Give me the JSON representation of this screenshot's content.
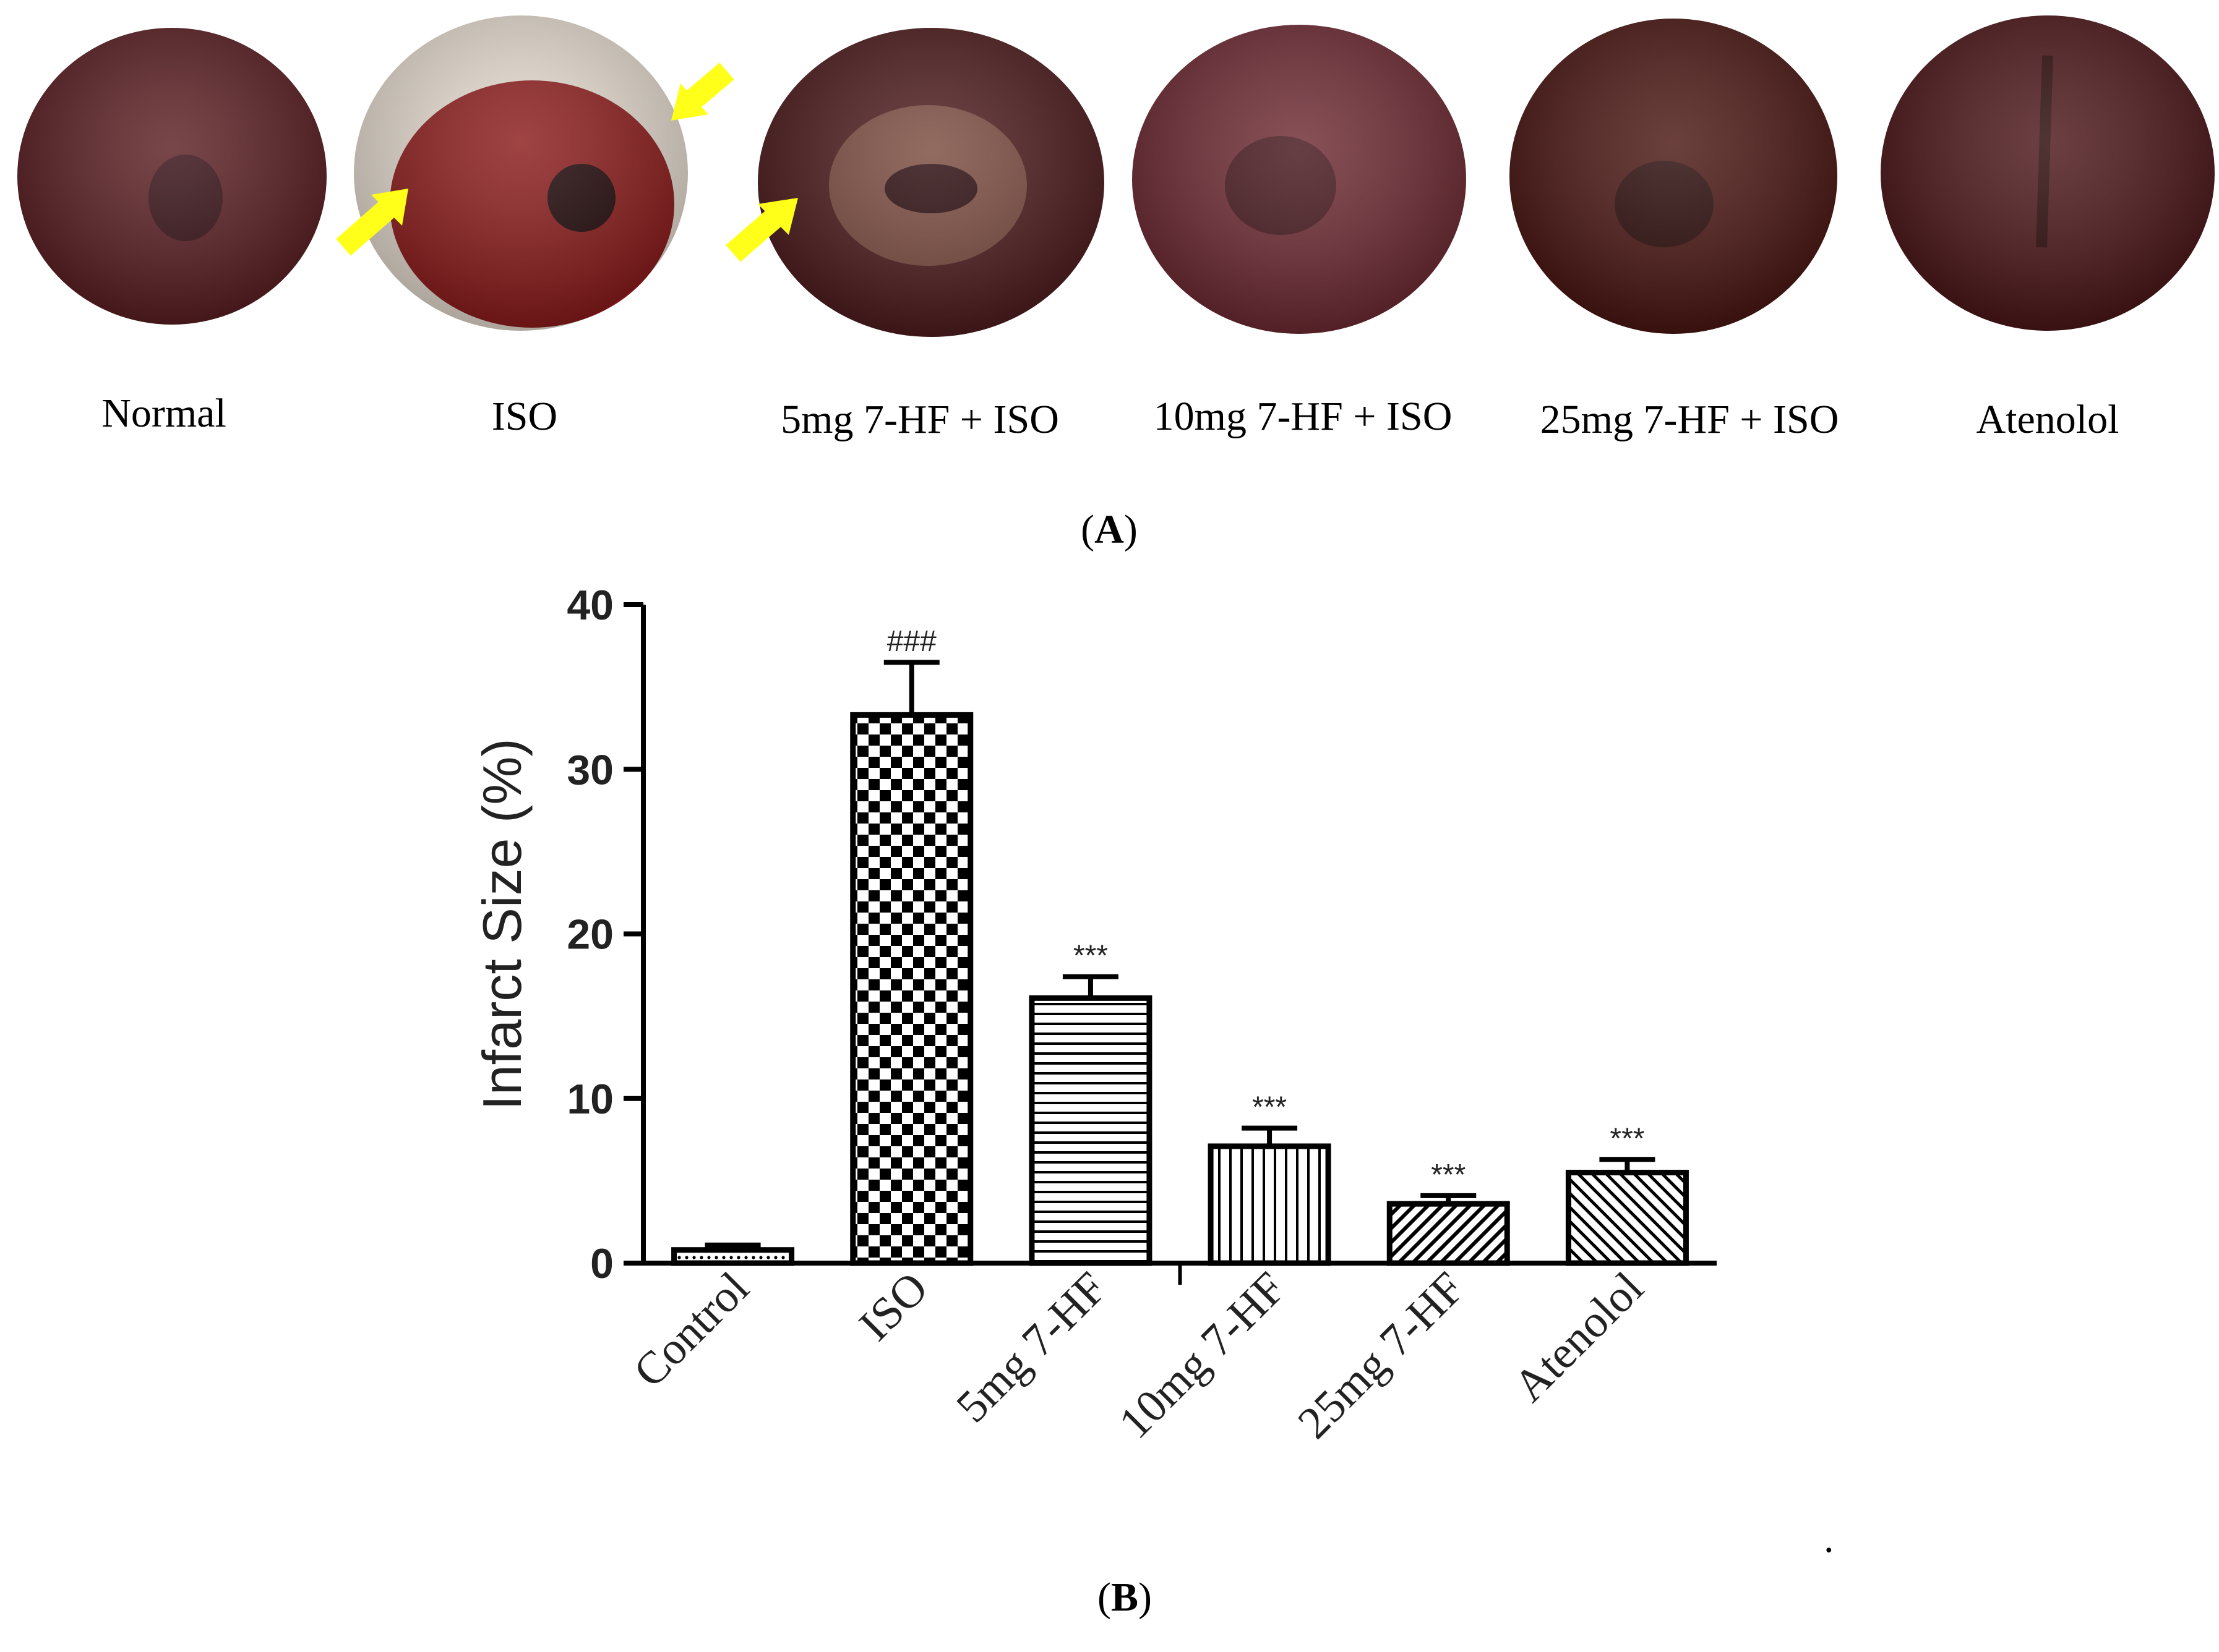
{
  "panel_a": {
    "label_open": "(",
    "label_letter": "A",
    "label_close": ")",
    "samples": [
      {
        "label": "Normal",
        "tone": "#5a1e22",
        "arrows": 0
      },
      {
        "label": "ISO",
        "tone": "#8a1a1a",
        "arrows": 2
      },
      {
        "label": "5mg 7-HF + ISO",
        "tone": "#4e1c1e",
        "arrows": 1
      },
      {
        "label": "10mg 7-HF + ISO",
        "tone": "#6e2a33",
        "arrows": 0
      },
      {
        "label": "25mg 7-HF + ISO",
        "tone": "#4a1612",
        "arrows": 0
      },
      {
        "label": "Atenolol",
        "tone": "#4c1618",
        "arrows": 0
      }
    ],
    "arrow_color": "#ffff1a"
  },
  "panel_b": {
    "label_open": "(",
    "label_letter": "B",
    "label_close": ")",
    "trailing_mark": "."
  },
  "chart_data": {
    "type": "bar",
    "title": "",
    "xlabel": "",
    "ylabel": "Infarct Size (%)",
    "ylim": [
      0,
      40
    ],
    "yticks": [
      0,
      10,
      20,
      30,
      40
    ],
    "categories": [
      "Control",
      "ISO",
      "5mg 7-HF",
      "10mg 7-HF",
      "25mg 7-HF",
      "Atenolol"
    ],
    "values": [
      0.8,
      33.3,
      16.1,
      7.1,
      3.6,
      5.5
    ],
    "errors": [
      0.3,
      3.2,
      1.3,
      1.1,
      0.5,
      0.8
    ],
    "patterns": [
      "dots",
      "checker",
      "hlines",
      "vlines",
      "diag-up",
      "diag-down"
    ],
    "annotations": [
      "",
      "###",
      "***",
      "***",
      "***",
      "***"
    ]
  }
}
